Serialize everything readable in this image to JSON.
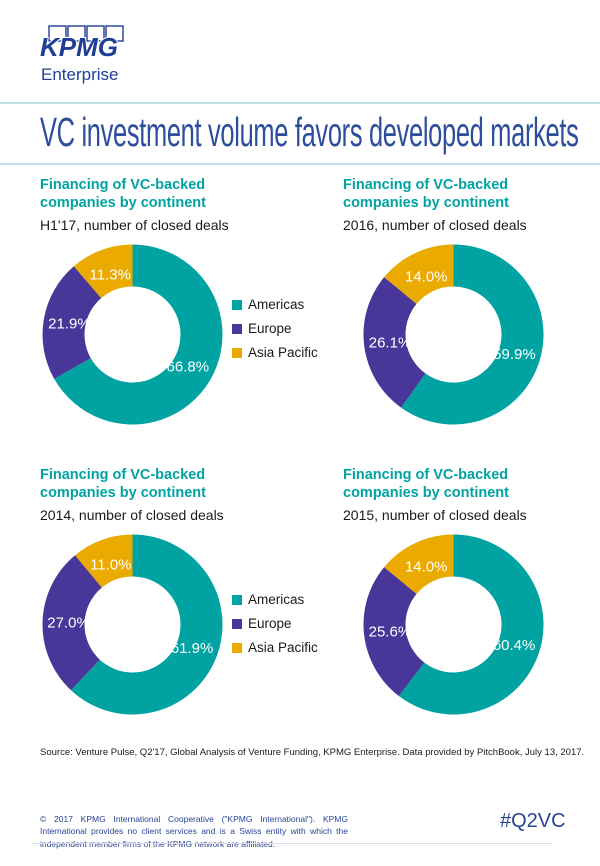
{
  "brand": {
    "logo_text": "KPMG",
    "logo_sub": "Enterprise"
  },
  "header": {
    "title": "VC investment volume favors developed markets"
  },
  "colors": {
    "americas": "#00A3A1",
    "europe": "#483698",
    "asia_pacific": "#EAAA00",
    "heading_teal": "#00A3A1",
    "title_blue": "#2D4E9C",
    "rule_teal": "#BFE1E1",
    "footer_blue": "#2A4494"
  },
  "legend": {
    "items": [
      {
        "label": "Americas",
        "color": "#00A3A1"
      },
      {
        "label": "Europe",
        "color": "#483698"
      },
      {
        "label": "Asia Pacific",
        "color": "#EAAA00"
      }
    ]
  },
  "chart_data": [
    {
      "type": "pie",
      "donut": true,
      "title": "Financing of VC-backed companies by continent",
      "subtitle": "H1'17, number of closed deals",
      "categories": [
        "Americas",
        "Europe",
        "Asia Pacific"
      ],
      "values": [
        66.8,
        21.9,
        11.3
      ],
      "labels": [
        "66.8%",
        "21.9%",
        "11.3%"
      ],
      "colors": [
        "#00A3A1",
        "#483698",
        "#EAAA00"
      ],
      "start_angle_deg": 0,
      "direction": "clockwise",
      "legend_position": "right"
    },
    {
      "type": "pie",
      "donut": true,
      "title": "Financing of VC-backed companies by continent",
      "subtitle": "2016, number of closed deals",
      "categories": [
        "Americas",
        "Europe",
        "Asia Pacific"
      ],
      "values": [
        59.9,
        26.1,
        14.0
      ],
      "labels": [
        "59.9%",
        "26.1%",
        "14.0%"
      ],
      "colors": [
        "#00A3A1",
        "#483698",
        "#EAAA00"
      ],
      "start_angle_deg": 0,
      "direction": "clockwise",
      "legend_position": "none"
    },
    {
      "type": "pie",
      "donut": true,
      "title": "Financing of VC-backed companies by continent",
      "subtitle": "2014, number of closed deals",
      "categories": [
        "Americas",
        "Europe",
        "Asia Pacific"
      ],
      "values": [
        61.9,
        27.0,
        11.0
      ],
      "labels": [
        "61.9%",
        "27.0%",
        "11.0%"
      ],
      "colors": [
        "#00A3A1",
        "#483698",
        "#EAAA00"
      ],
      "start_angle_deg": 0,
      "direction": "clockwise",
      "legend_position": "right"
    },
    {
      "type": "pie",
      "donut": true,
      "title": "Financing of VC-backed companies by continent",
      "subtitle": "2015, number of closed deals",
      "categories": [
        "Americas",
        "Europe",
        "Asia Pacific"
      ],
      "values": [
        60.4,
        25.6,
        14.0
      ],
      "labels": [
        "60.4%",
        "25.6%",
        "14.0%"
      ],
      "colors": [
        "#00A3A1",
        "#483698",
        "#EAAA00"
      ],
      "start_angle_deg": 0,
      "direction": "clockwise",
      "legend_position": "none"
    }
  ],
  "source": "Source: Venture Pulse, Q2'17, Global Analysis of Venture Funding, KPMG Enterprise. Data provided by PitchBook, July 13, 2017.",
  "footer": {
    "copyright": "© 2017 KPMG International Cooperative (\"KPMG International\"). KPMG International provides no client services and is a Swiss entity with which the independent member firms of the KPMG network are affiliated.",
    "hashtag": "#Q2VC"
  }
}
